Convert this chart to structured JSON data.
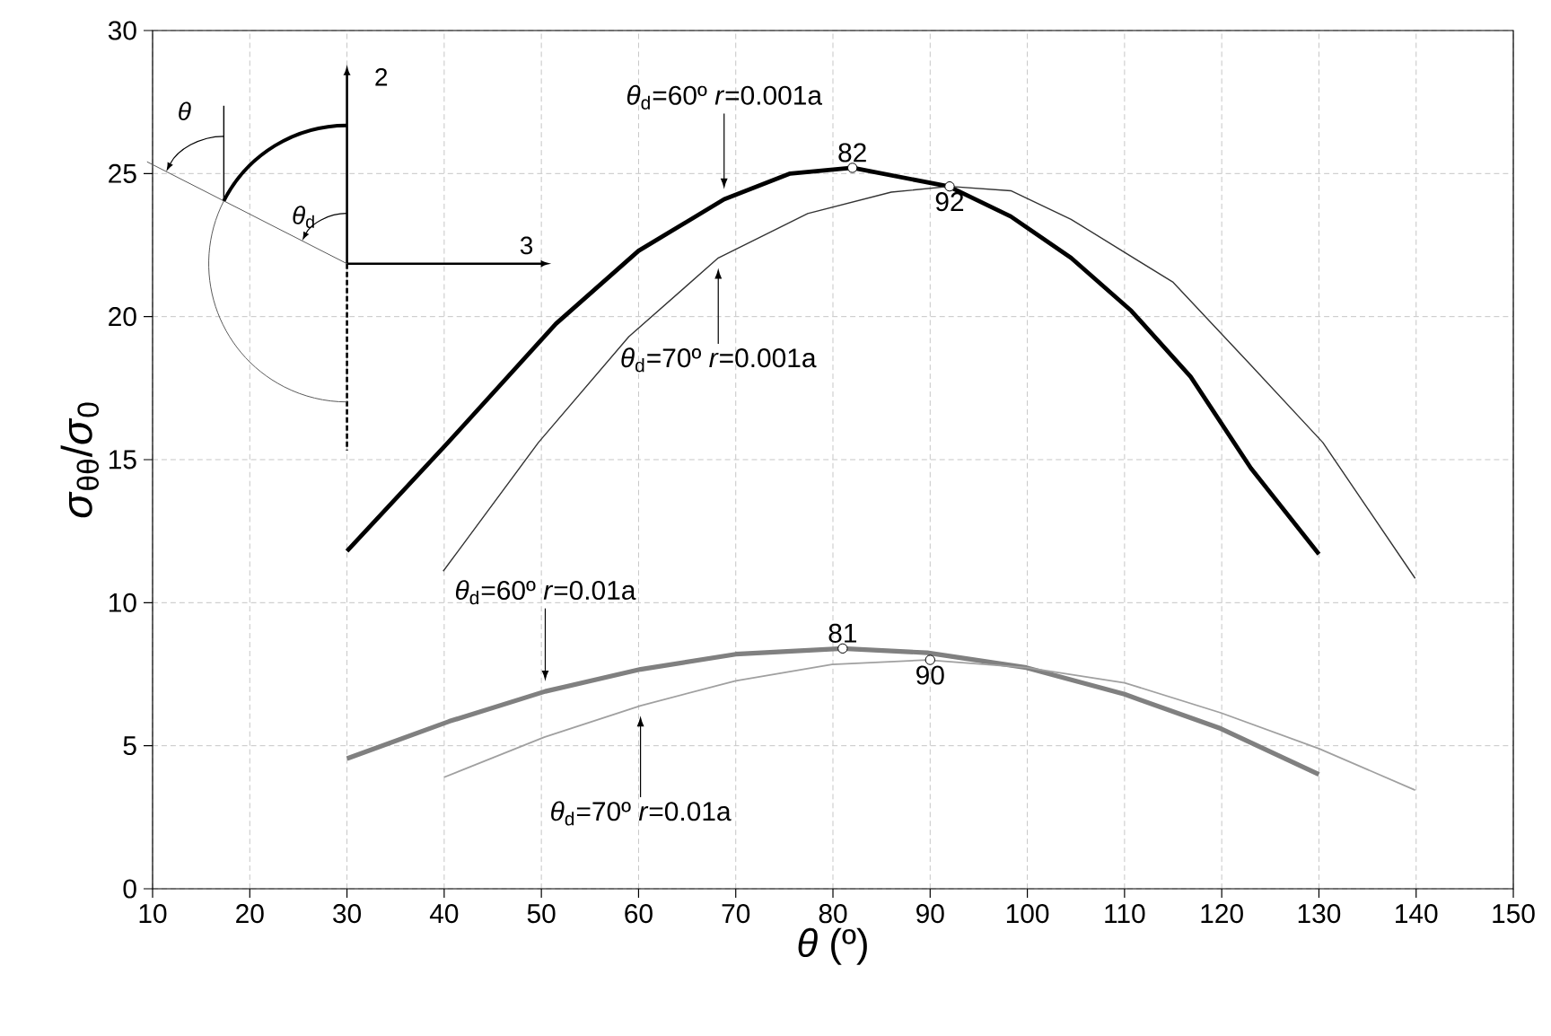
{
  "chart_data": {
    "type": "line",
    "xlabel": "*θ* (º)",
    "ylabel": "*σ*$_{θθ}$/*σ*$_{0}$",
    "xlim": [
      10,
      150
    ],
    "ylim": [
      0,
      30
    ],
    "xticks": [
      10,
      20,
      30,
      40,
      50,
      60,
      70,
      80,
      90,
      100,
      110,
      120,
      130,
      140,
      150
    ],
    "yticks": [
      0,
      5,
      10,
      15,
      20,
      25,
      30
    ],
    "grid": true,
    "series": [
      {
        "name": "*θ*$_{d}$=60º *r*=0.001a",
        "color": "#000000",
        "x": [
          30,
          40.4,
          51.5,
          60,
          68.8,
          75.6,
          82,
          91.9,
          98.3,
          104.5,
          110.7,
          116.8,
          123,
          130
        ],
        "values": [
          11.8,
          15.6,
          19.75,
          22.3,
          24.1,
          25.0,
          25.2,
          24.55,
          23.5,
          22.05,
          20.2,
          17.9,
          14.7,
          11.7
        ]
      },
      {
        "name": "*θ*$_{d}$=70º *r*=0.001a",
        "color": "#333333",
        "x": [
          39.9,
          49.7,
          59,
          68.2,
          77.4,
          86,
          92,
          98.3,
          104.5,
          115,
          123,
          130.4,
          139.9
        ],
        "values": [
          11.1,
          15.6,
          19.3,
          22.05,
          23.6,
          24.35,
          24.55,
          24.4,
          23.4,
          21.2,
          18.3,
          15.6,
          10.85
        ]
      },
      {
        "name": "*θ*$_{d}$=60º *r*=0.01a",
        "color": "#808080",
        "x": [
          30,
          40.5,
          50.4,
          60.2,
          70,
          81,
          89.7,
          99.9,
          110,
          119.9,
          130
        ],
        "values": [
          4.55,
          5.85,
          6.9,
          7.67,
          8.2,
          8.4,
          8.25,
          7.73,
          6.8,
          5.6,
          4.0
        ]
      },
      {
        "name": "*θ*$_{d}$=70º *r*=0.01a",
        "color": "#a0a0a0",
        "x": [
          40,
          50.3,
          60.2,
          70,
          79.9,
          89.7,
          99.9,
          110,
          119.9,
          130,
          139.9
        ],
        "values": [
          3.9,
          5.3,
          6.4,
          7.27,
          7.84,
          8.0,
          7.73,
          7.2,
          6.15,
          4.9,
          3.45
        ]
      },
      {
        "type": "scatter",
        "marker": "circle",
        "color": "#ffffff",
        "x": [
          82,
          92,
          81,
          90
        ],
        "values": [
          25.2,
          24.55,
          8.4,
          8.0
        ]
      }
    ],
    "annotations": [
      {
        "text": "82",
        "x": 82,
        "y": 25.2
      },
      {
        "text": "92",
        "x": 92,
        "y": 24.55
      },
      {
        "text": "81",
        "x": 81,
        "y": 8.4
      },
      {
        "text": "90",
        "x": 90,
        "y": 8.0
      },
      "2",
      "3",
      "*θ*",
      "*θ*$_{d}$"
    ]
  }
}
